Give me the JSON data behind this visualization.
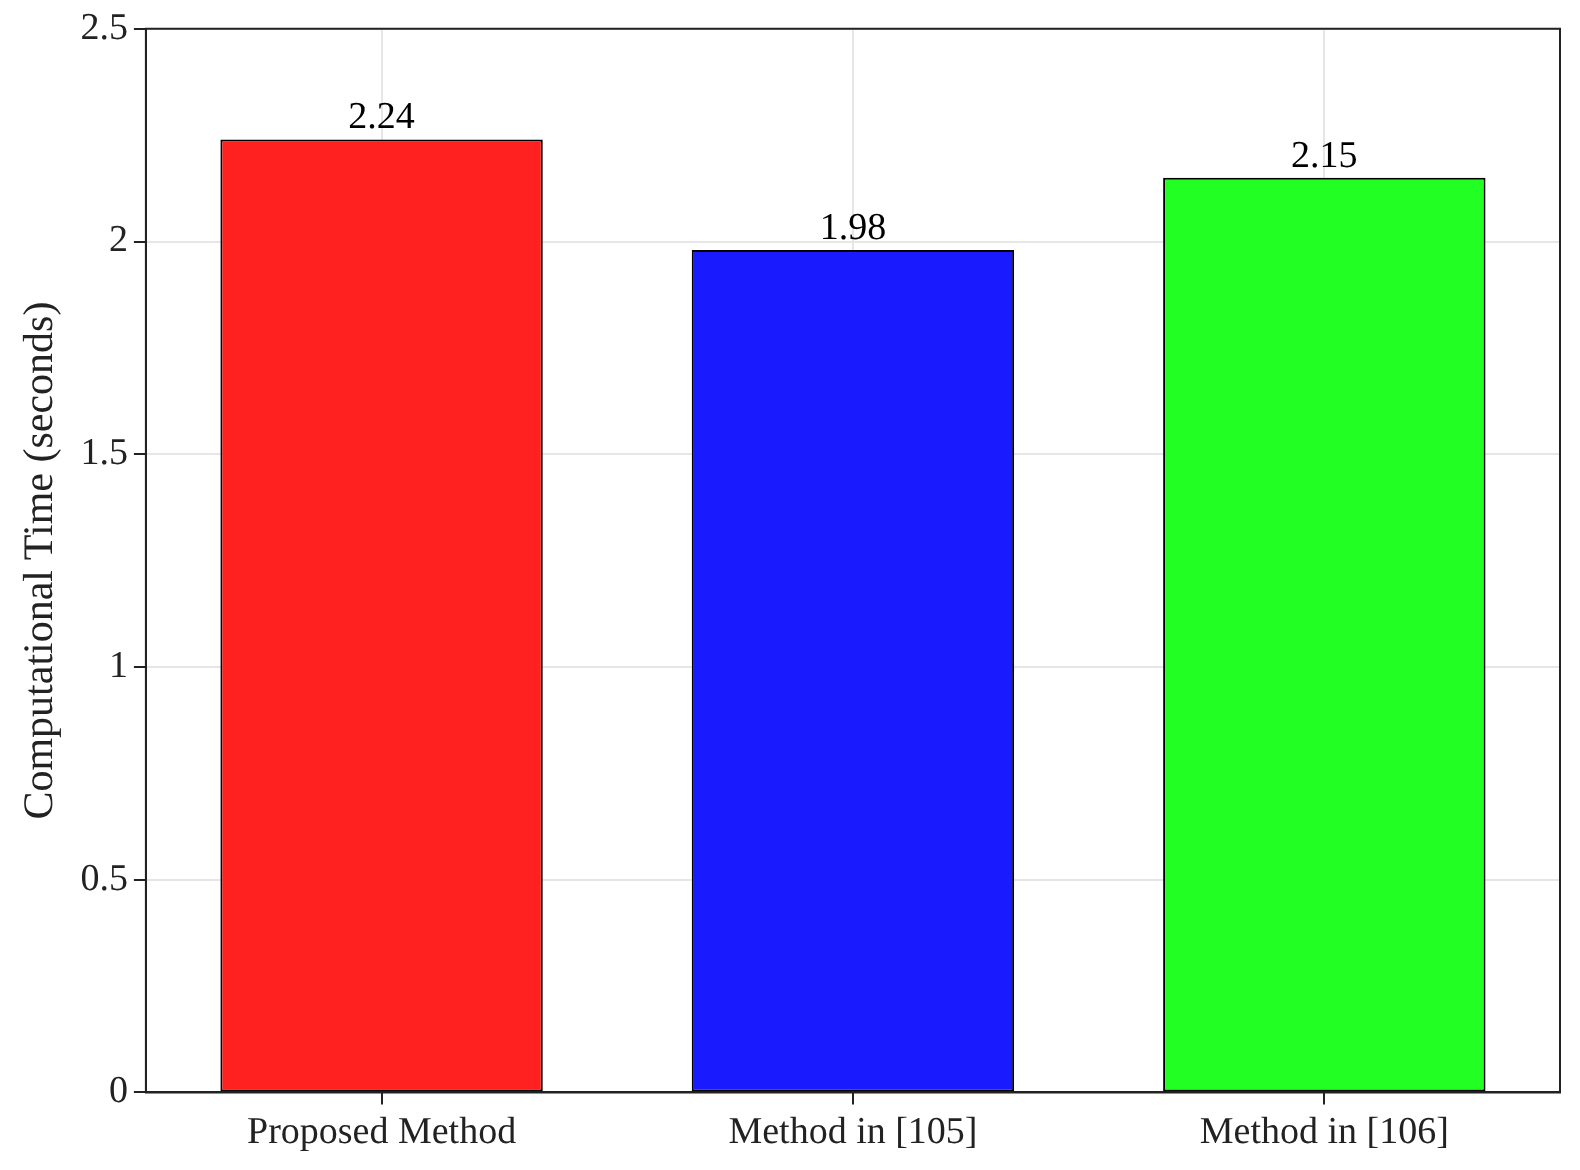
{
  "chart_data": {
    "type": "bar",
    "ylabel": "Computational Time (seconds)",
    "categories": [
      "Proposed Method",
      "Method in [105]",
      "Method in [106]"
    ],
    "values": [
      2.24,
      1.98,
      2.15
    ],
    "colors": [
      "#ff2020",
      "#1a1aff",
      "#22ff22"
    ],
    "ylim": [
      0,
      2.5
    ],
    "yticks": [
      0,
      0.5,
      1,
      1.5,
      2,
      2.5
    ],
    "grid": true,
    "data_labels": true
  }
}
